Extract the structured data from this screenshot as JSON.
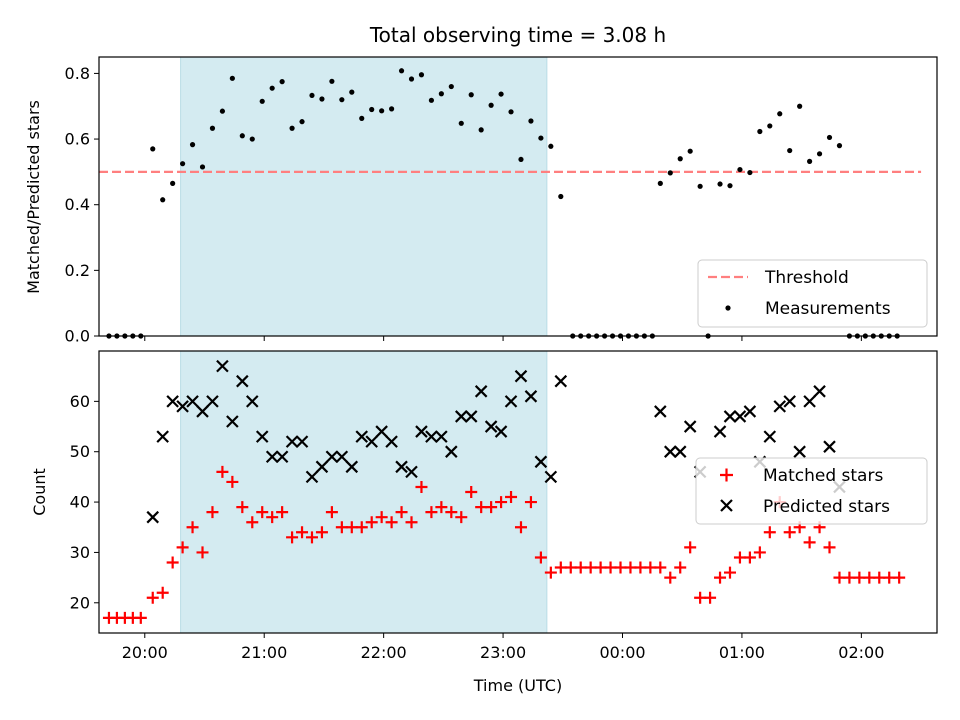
{
  "title": "Total observing time = 3.08 h",
  "chart_data": [
    {
      "type": "scatter",
      "ylabel": "Matched/Predicted stars",
      "ylim": [
        0,
        0.85
      ],
      "yticks": [
        0.0,
        0.2,
        0.4,
        0.6,
        0.8
      ],
      "ytick_labels": [
        "0.0",
        "0.2",
        "0.4",
        "0.6",
        "0.8"
      ],
      "xlim": [
        "19:37",
        "02:38"
      ],
      "xticks": [
        "20:00",
        "21:00",
        "22:00",
        "23:00",
        "00:00",
        "01:00",
        "02:00"
      ],
      "highlight_span": [
        "20:18",
        "23:22"
      ],
      "highlight_color": "#d4ebf1",
      "threshold": {
        "name": "Threshold",
        "value": 0.5,
        "x_range": [
          "19:37",
          "02:30"
        ],
        "color": "#ff7f7f"
      },
      "series": [
        {
          "name": "Measurements",
          "color": "#000000",
          "marker": "dot",
          "points": [
            [
              "19:42",
              0
            ],
            [
              "19:46",
              0
            ],
            [
              "19:50",
              0
            ],
            [
              "19:54",
              0
            ],
            [
              "19:58",
              0
            ],
            [
              "20:04",
              0.57
            ],
            [
              "20:09",
              0.415
            ],
            [
              "20:14",
              0.465
            ],
            [
              "20:19",
              0.525
            ],
            [
              "20:24",
              0.583
            ],
            [
              "20:29",
              0.515
            ],
            [
              "20:34",
              0.633
            ],
            [
              "20:39",
              0.685
            ],
            [
              "20:44",
              0.785
            ],
            [
              "20:49",
              0.61
            ],
            [
              "20:54",
              0.6
            ],
            [
              "20:59",
              0.715
            ],
            [
              "21:04",
              0.755
            ],
            [
              "21:09",
              0.775
            ],
            [
              "21:14",
              0.633
            ],
            [
              "21:19",
              0.653
            ],
            [
              "21:24",
              0.733
            ],
            [
              "21:29",
              0.722
            ],
            [
              "21:34",
              0.776
            ],
            [
              "21:39",
              0.72
            ],
            [
              "21:44",
              0.743
            ],
            [
              "21:49",
              0.663
            ],
            [
              "21:54",
              0.69
            ],
            [
              "21:59",
              0.686
            ],
            [
              "22:04",
              0.692
            ],
            [
              "22:09",
              0.808
            ],
            [
              "22:14",
              0.783
            ],
            [
              "22:19",
              0.796
            ],
            [
              "22:24",
              0.718
            ],
            [
              "22:29",
              0.738
            ],
            [
              "22:34",
              0.76
            ],
            [
              "22:39",
              0.648
            ],
            [
              "22:44",
              0.735
            ],
            [
              "22:49",
              0.628
            ],
            [
              "22:54",
              0.703
            ],
            [
              "22:59",
              0.737
            ],
            [
              "23:04",
              0.683
            ],
            [
              "23:09",
              0.538
            ],
            [
              "23:14",
              0.655
            ],
            [
              "23:19",
              0.603
            ],
            [
              "23:24",
              0.578
            ],
            [
              "23:29",
              0.425
            ],
            [
              "23:35",
              0
            ],
            [
              "23:39",
              0
            ],
            [
              "23:43",
              0
            ],
            [
              "23:47",
              0
            ],
            [
              "23:51",
              0
            ],
            [
              "23:55",
              0
            ],
            [
              "23:59",
              0
            ],
            [
              "00:03",
              0
            ],
            [
              "00:07",
              0
            ],
            [
              "00:11",
              0
            ],
            [
              "00:15",
              0
            ],
            [
              "00:19",
              0.465
            ],
            [
              "00:24",
              0.497
            ],
            [
              "00:29",
              0.54
            ],
            [
              "00:34",
              0.563
            ],
            [
              "00:39",
              0.456
            ],
            [
              "00:43",
              0
            ],
            [
              "00:49",
              0.463
            ],
            [
              "00:54",
              0.458
            ],
            [
              "00:59",
              0.507
            ],
            [
              "01:04",
              0.498
            ],
            [
              "01:09",
              0.623
            ],
            [
              "01:14",
              0.64
            ],
            [
              "01:19",
              0.677
            ],
            [
              "01:24",
              0.565
            ],
            [
              "01:29",
              0.7
            ],
            [
              "01:34",
              0.532
            ],
            [
              "01:39",
              0.555
            ],
            [
              "01:44",
              0.605
            ],
            [
              "01:49",
              0.58
            ],
            [
              "01:54",
              0
            ],
            [
              "01:58",
              0
            ],
            [
              "02:02",
              0
            ],
            [
              "02:06",
              0
            ],
            [
              "02:10",
              0
            ],
            [
              "02:14",
              0
            ],
            [
              "02:18",
              0
            ]
          ]
        }
      ],
      "legend": {
        "position": "lower-right",
        "entries": [
          "Threshold",
          "Measurements"
        ]
      }
    },
    {
      "type": "scatter",
      "xlabel": "Time (UTC)",
      "ylabel": "Count",
      "ylim": [
        14,
        70
      ],
      "yticks": [
        20,
        30,
        40,
        50,
        60
      ],
      "ytick_labels": [
        "20",
        "30",
        "40",
        "50",
        "60"
      ],
      "xlim": [
        "19:37",
        "02:38"
      ],
      "xticks": [
        "20:00",
        "21:00",
        "22:00",
        "23:00",
        "00:00",
        "01:00",
        "02:00"
      ],
      "highlight_span": [
        "20:18",
        "23:22"
      ],
      "highlight_color": "#d4ebf1",
      "series": [
        {
          "name": "Matched stars",
          "color": "#ff0000",
          "marker": "plus",
          "points": [
            [
              "19:42",
              17
            ],
            [
              "19:46",
              17
            ],
            [
              "19:50",
              17
            ],
            [
              "19:54",
              17
            ],
            [
              "19:58",
              17
            ],
            [
              "20:04",
              21
            ],
            [
              "20:09",
              22
            ],
            [
              "20:14",
              28
            ],
            [
              "20:19",
              31
            ],
            [
              "20:24",
              35
            ],
            [
              "20:29",
              30
            ],
            [
              "20:34",
              38
            ],
            [
              "20:39",
              46
            ],
            [
              "20:44",
              44
            ],
            [
              "20:49",
              39
            ],
            [
              "20:54",
              36
            ],
            [
              "20:59",
              38
            ],
            [
              "21:04",
              37
            ],
            [
              "21:09",
              38
            ],
            [
              "21:14",
              33
            ],
            [
              "21:19",
              34
            ],
            [
              "21:24",
              33
            ],
            [
              "21:29",
              34
            ],
            [
              "21:34",
              38
            ],
            [
              "21:39",
              35
            ],
            [
              "21:44",
              35
            ],
            [
              "21:49",
              35
            ],
            [
              "21:54",
              36
            ],
            [
              "21:59",
              37
            ],
            [
              "22:04",
              36
            ],
            [
              "22:09",
              38
            ],
            [
              "22:14",
              36
            ],
            [
              "22:19",
              43
            ],
            [
              "22:24",
              38
            ],
            [
              "22:29",
              39
            ],
            [
              "22:34",
              38
            ],
            [
              "22:39",
              37
            ],
            [
              "22:44",
              42
            ],
            [
              "22:49",
              39
            ],
            [
              "22:54",
              39
            ],
            [
              "22:59",
              40
            ],
            [
              "23:04",
              41
            ],
            [
              "23:09",
              35
            ],
            [
              "23:14",
              40
            ],
            [
              "23:19",
              29
            ],
            [
              "23:24",
              26
            ],
            [
              "23:29",
              27
            ],
            [
              "23:34",
              27
            ],
            [
              "23:39",
              27
            ],
            [
              "23:44",
              27
            ],
            [
              "23:49",
              27
            ],
            [
              "23:54",
              27
            ],
            [
              "23:59",
              27
            ],
            [
              "00:04",
              27
            ],
            [
              "00:09",
              27
            ],
            [
              "00:14",
              27
            ],
            [
              "00:19",
              27
            ],
            [
              "00:24",
              25
            ],
            [
              "00:29",
              27
            ],
            [
              "00:34",
              31
            ],
            [
              "00:39",
              21
            ],
            [
              "00:44",
              21
            ],
            [
              "00:49",
              25
            ],
            [
              "00:54",
              26
            ],
            [
              "00:59",
              29
            ],
            [
              "01:04",
              29
            ],
            [
              "01:09",
              30
            ],
            [
              "01:14",
              34
            ],
            [
              "01:19",
              40
            ],
            [
              "01:24",
              34
            ],
            [
              "01:29",
              35
            ],
            [
              "01:34",
              32
            ],
            [
              "01:39",
              35
            ],
            [
              "01:44",
              31
            ],
            [
              "01:49",
              25
            ],
            [
              "01:54",
              25
            ],
            [
              "01:59",
              25
            ],
            [
              "02:04",
              25
            ],
            [
              "02:09",
              25
            ],
            [
              "02:14",
              25
            ],
            [
              "02:19",
              25
            ]
          ]
        },
        {
          "name": "Predicted stars",
          "color": "#000000",
          "marker": "x",
          "points": [
            [
              "20:04",
              37
            ],
            [
              "20:09",
              53
            ],
            [
              "20:14",
              60
            ],
            [
              "20:19",
              59
            ],
            [
              "20:24",
              60
            ],
            [
              "20:29",
              58
            ],
            [
              "20:34",
              60
            ],
            [
              "20:39",
              67
            ],
            [
              "20:44",
              56
            ],
            [
              "20:49",
              64
            ],
            [
              "20:54",
              60
            ],
            [
              "20:59",
              53
            ],
            [
              "21:04",
              49
            ],
            [
              "21:09",
              49
            ],
            [
              "21:14",
              52
            ],
            [
              "21:19",
              52
            ],
            [
              "21:24",
              45
            ],
            [
              "21:29",
              47
            ],
            [
              "21:34",
              49
            ],
            [
              "21:39",
              49
            ],
            [
              "21:44",
              47
            ],
            [
              "21:49",
              53
            ],
            [
              "21:54",
              52
            ],
            [
              "21:59",
              54
            ],
            [
              "22:04",
              52
            ],
            [
              "22:09",
              47
            ],
            [
              "22:14",
              46
            ],
            [
              "22:19",
              54
            ],
            [
              "22:24",
              53
            ],
            [
              "22:29",
              53
            ],
            [
              "22:34",
              50
            ],
            [
              "22:39",
              57
            ],
            [
              "22:44",
              57
            ],
            [
              "22:49",
              62
            ],
            [
              "22:54",
              55
            ],
            [
              "22:59",
              54
            ],
            [
              "23:04",
              60
            ],
            [
              "23:09",
              65
            ],
            [
              "23:14",
              61
            ],
            [
              "23:19",
              48
            ],
            [
              "23:24",
              45
            ],
            [
              "23:29",
              64
            ],
            [
              "00:19",
              58
            ],
            [
              "00:24",
              50
            ],
            [
              "00:29",
              50
            ],
            [
              "00:34",
              55
            ],
            [
              "00:39",
              46
            ],
            [
              "00:49",
              54
            ],
            [
              "00:54",
              57
            ],
            [
              "00:59",
              57
            ],
            [
              "01:04",
              58
            ],
            [
              "01:09",
              48
            ],
            [
              "01:14",
              53
            ],
            [
              "01:19",
              59
            ],
            [
              "01:24",
              60
            ],
            [
              "01:29",
              50
            ],
            [
              "01:34",
              60
            ],
            [
              "01:39",
              62
            ],
            [
              "01:44",
              51
            ],
            [
              "01:49",
              43
            ]
          ]
        }
      ],
      "legend": {
        "position": "center-right",
        "entries": [
          "Matched stars",
          "Predicted stars"
        ]
      }
    }
  ]
}
